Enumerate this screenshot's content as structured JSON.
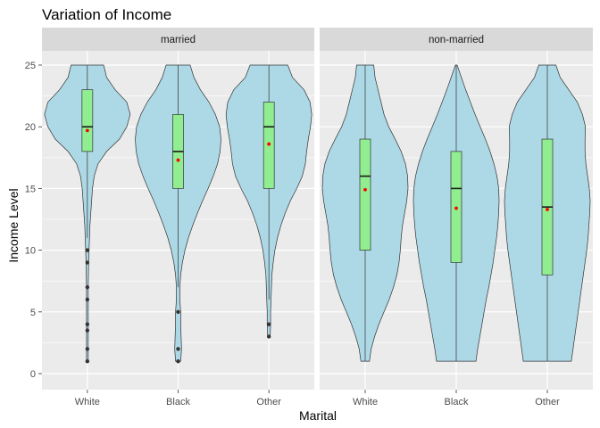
{
  "chart_data": {
    "type": "violin",
    "title": "Variation of Income",
    "xlabel": "Marital",
    "ylabel": "Income Level",
    "ylim": [
      0,
      25
    ],
    "yticks": [
      0,
      5,
      10,
      15,
      20,
      25
    ],
    "grid": true,
    "categories": [
      "White",
      "Black",
      "Other"
    ],
    "colors": {
      "violin_fill": "#add8e6",
      "box_fill": "#90ee90",
      "mean_point": "#ff0000",
      "outlier": "#333333",
      "panel_bg": "#ebebeb",
      "strip_bg": "#d9d9d9"
    },
    "facets": [
      {
        "label": "married",
        "groups": [
          {
            "category": "White",
            "box": {
              "q1": 18,
              "median": 20,
              "q3": 23,
              "whisker_low": 11,
              "whisker_high": 25
            },
            "mean": 19.7,
            "outliers": [
              1,
              2,
              3.5,
              4,
              6,
              7,
              9,
              10
            ],
            "density": [
              [
                1,
                0.02
              ],
              [
                3,
                0.02
              ],
              [
                5,
                0.02
              ],
              [
                7,
                0.02
              ],
              [
                9,
                0.03
              ],
              [
                10,
                0.04
              ],
              [
                11,
                0.05
              ],
              [
                12,
                0.06
              ],
              [
                13,
                0.08
              ],
              [
                14,
                0.1
              ],
              [
                15,
                0.12
              ],
              [
                16,
                0.16
              ],
              [
                17,
                0.25
              ],
              [
                18,
                0.45
              ],
              [
                19,
                0.75
              ],
              [
                20,
                0.92
              ],
              [
                21,
                1.0
              ],
              [
                22,
                0.92
              ],
              [
                23,
                0.65
              ],
              [
                24,
                0.45
              ],
              [
                25,
                0.38
              ]
            ]
          },
          {
            "category": "Black",
            "box": {
              "q1": 15,
              "median": 18,
              "q3": 21,
              "whisker_low": 7,
              "whisker_high": 25
            },
            "mean": 17.3,
            "outliers": [
              1,
              2,
              5
            ],
            "density": [
              [
                1,
                0.06
              ],
              [
                2,
                0.08
              ],
              [
                3,
                0.07
              ],
              [
                4,
                0.06
              ],
              [
                5,
                0.06
              ],
              [
                6,
                0.04
              ],
              [
                7,
                0.04
              ],
              [
                8,
                0.06
              ],
              [
                9,
                0.1
              ],
              [
                10,
                0.16
              ],
              [
                11,
                0.24
              ],
              [
                12,
                0.34
              ],
              [
                13,
                0.45
              ],
              [
                14,
                0.57
              ],
              [
                15,
                0.7
              ],
              [
                16,
                0.82
              ],
              [
                17,
                0.92
              ],
              [
                18,
                0.98
              ],
              [
                19,
                1.0
              ],
              [
                20,
                0.97
              ],
              [
                21,
                0.87
              ],
              [
                22,
                0.72
              ],
              [
                23,
                0.52
              ],
              [
                24,
                0.37
              ],
              [
                25,
                0.28
              ]
            ]
          },
          {
            "category": "Other",
            "box": {
              "q1": 15,
              "median": 20,
              "q3": 22,
              "whisker_low": 6,
              "whisker_high": 25
            },
            "mean": 18.6,
            "outliers": [
              3,
              4
            ],
            "density": [
              [
                3,
                0.03
              ],
              [
                4,
                0.04
              ],
              [
                5,
                0.04
              ],
              [
                6,
                0.05
              ],
              [
                7,
                0.06
              ],
              [
                8,
                0.07
              ],
              [
                9,
                0.1
              ],
              [
                10,
                0.14
              ],
              [
                11,
                0.2
              ],
              [
                12,
                0.28
              ],
              [
                13,
                0.38
              ],
              [
                14,
                0.5
              ],
              [
                15,
                0.65
              ],
              [
                16,
                0.78
              ],
              [
                17,
                0.85
              ],
              [
                18,
                0.88
              ],
              [
                19,
                0.92
              ],
              [
                20,
                0.97
              ],
              [
                21,
                1.0
              ],
              [
                22,
                0.96
              ],
              [
                23,
                0.82
              ],
              [
                24,
                0.55
              ],
              [
                25,
                0.44
              ]
            ]
          }
        ]
      },
      {
        "label": "non-married",
        "groups": [
          {
            "category": "White",
            "box": {
              "q1": 10,
              "median": 16,
              "q3": 19,
              "whisker_low": 1,
              "whisker_high": 25
            },
            "mean": 14.9,
            "outliers": [],
            "density": [
              [
                1,
                0.1
              ],
              [
                2,
                0.14
              ],
              [
                3,
                0.22
              ],
              [
                4,
                0.32
              ],
              [
                5,
                0.44
              ],
              [
                6,
                0.56
              ],
              [
                7,
                0.66
              ],
              [
                8,
                0.74
              ],
              [
                9,
                0.79
              ],
              [
                10,
                0.82
              ],
              [
                11,
                0.84
              ],
              [
                12,
                0.87
              ],
              [
                13,
                0.92
              ],
              [
                14,
                0.97
              ],
              [
                15,
                1.0
              ],
              [
                16,
                0.99
              ],
              [
                17,
                0.94
              ],
              [
                18,
                0.84
              ],
              [
                19,
                0.7
              ],
              [
                20,
                0.55
              ],
              [
                21,
                0.44
              ],
              [
                22,
                0.37
              ],
              [
                23,
                0.3
              ],
              [
                24,
                0.23
              ],
              [
                25,
                0.2
              ]
            ]
          },
          {
            "category": "Black",
            "box": {
              "q1": 9,
              "median": 15,
              "q3": 18,
              "whisker_low": 1,
              "whisker_high": 25
            },
            "mean": 13.4,
            "outliers": [],
            "density": [
              [
                1,
                0.46
              ],
              [
                2,
                0.5
              ],
              [
                3,
                0.55
              ],
              [
                4,
                0.6
              ],
              [
                5,
                0.65
              ],
              [
                6,
                0.7
              ],
              [
                7,
                0.76
              ],
              [
                8,
                0.81
              ],
              [
                9,
                0.86
              ],
              [
                10,
                0.9
              ],
              [
                11,
                0.94
              ],
              [
                12,
                0.97
              ],
              [
                13,
                0.99
              ],
              [
                14,
                1.0
              ],
              [
                15,
                0.99
              ],
              [
                16,
                0.95
              ],
              [
                17,
                0.88
              ],
              [
                18,
                0.79
              ],
              [
                19,
                0.68
              ],
              [
                20,
                0.56
              ],
              [
                21,
                0.44
              ],
              [
                22,
                0.33
              ],
              [
                23,
                0.22
              ],
              [
                24,
                0.12
              ],
              [
                25,
                0.02
              ]
            ]
          },
          {
            "category": "Other",
            "box": {
              "q1": 8,
              "median": 13.5,
              "q3": 19,
              "whisker_low": 1,
              "whisker_high": 25
            },
            "mean": 13.3,
            "outliers": [],
            "density": [
              [
                1,
                0.56
              ],
              [
                2,
                0.6
              ],
              [
                3,
                0.64
              ],
              [
                4,
                0.68
              ],
              [
                5,
                0.72
              ],
              [
                6,
                0.76
              ],
              [
                7,
                0.8
              ],
              [
                8,
                0.84
              ],
              [
                9,
                0.88
              ],
              [
                10,
                0.92
              ],
              [
                11,
                0.95
              ],
              [
                12,
                0.97
              ],
              [
                13,
                0.99
              ],
              [
                14,
                1.0
              ],
              [
                15,
                0.98
              ],
              [
                16,
                0.94
              ],
              [
                17,
                0.9
              ],
              [
                18,
                0.88
              ],
              [
                19,
                0.88
              ],
              [
                20,
                0.89
              ],
              [
                21,
                0.82
              ],
              [
                22,
                0.7
              ],
              [
                23,
                0.5
              ],
              [
                24,
                0.3
              ],
              [
                25,
                0.2
              ]
            ]
          }
        ]
      }
    ]
  }
}
